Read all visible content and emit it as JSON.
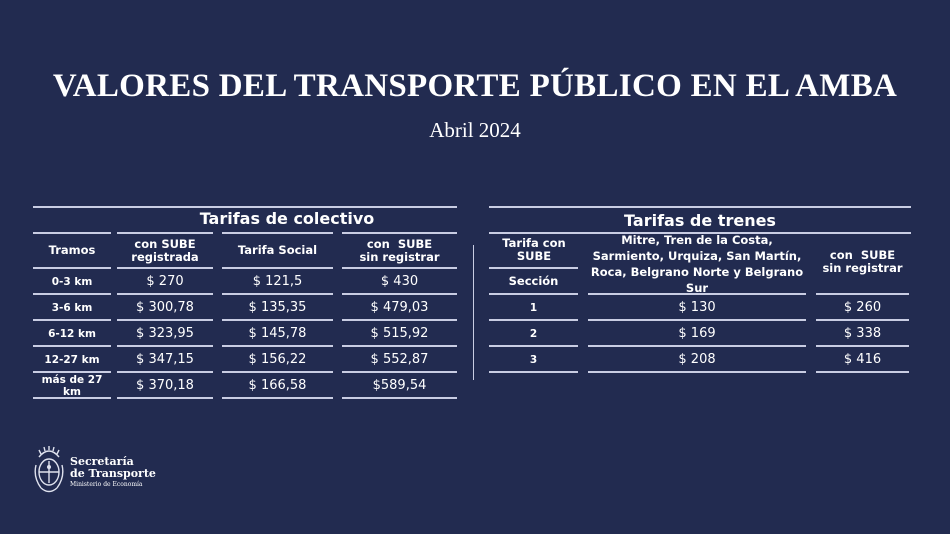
{
  "header": {
    "title": "VALORES DEL TRANSPORTE PÚBLICO EN EL AMBA",
    "subtitle": "Abril 2024"
  },
  "colectivo": {
    "section_title": "Tarifas de colectivo",
    "columns": [
      "Tramos",
      "con SUBE\nregistrada",
      "Tarifa Social",
      "con  SUBE\nsin registrar"
    ],
    "rows": [
      {
        "tramo": "0-3 km",
        "registrada": "$ 270",
        "social": "$ 121,5",
        "sin_registrar": "$ 430"
      },
      {
        "tramo": "3-6 km",
        "registrada": "$ 300,78",
        "social": "$ 135,35",
        "sin_registrar": "$ 479,03"
      },
      {
        "tramo": "6-12 km",
        "registrada": "$ 323,95",
        "social": "$ 145,78",
        "sin_registrar": "$ 515,92"
      },
      {
        "tramo": "12-27 km",
        "registrada": "$ 347,15",
        "social": "$ 156,22",
        "sin_registrar": "$ 552,87"
      },
      {
        "tramo": "más de 27 km",
        "registrada": "$ 370,18",
        "social": "$ 166,58",
        "sin_registrar": "$589,54"
      }
    ]
  },
  "trenes": {
    "section_title": "Tarifas de trenes",
    "col1_top": "Tarifa con SUBE",
    "col1_bottom": "Sección",
    "col2": "Mitre, Tren de la Costa,\nSarmiento, Urquiza, San Martín,\nRoca, Belgrano Norte y Belgrano Sur",
    "col3": "con  SUBE\nsin registrar",
    "rows": [
      {
        "seccion": "1",
        "con_sube": "$ 130",
        "sin_registrar": "$ 260"
      },
      {
        "seccion": "2",
        "con_sube": "$ 169",
        "sin_registrar": "$ 338"
      },
      {
        "seccion": "3",
        "con_sube": "$ 208",
        "sin_registrar": "$ 416"
      }
    ]
  },
  "footer": {
    "logo_icon": "argentina-coat-of-arms-icon",
    "org_line1": "Secretaría",
    "org_line2": "de Transporte",
    "org_line3": "Ministerio de Economía"
  },
  "colors": {
    "background": "#222b50",
    "text": "#ffffff",
    "rule": "#c9cde3"
  }
}
